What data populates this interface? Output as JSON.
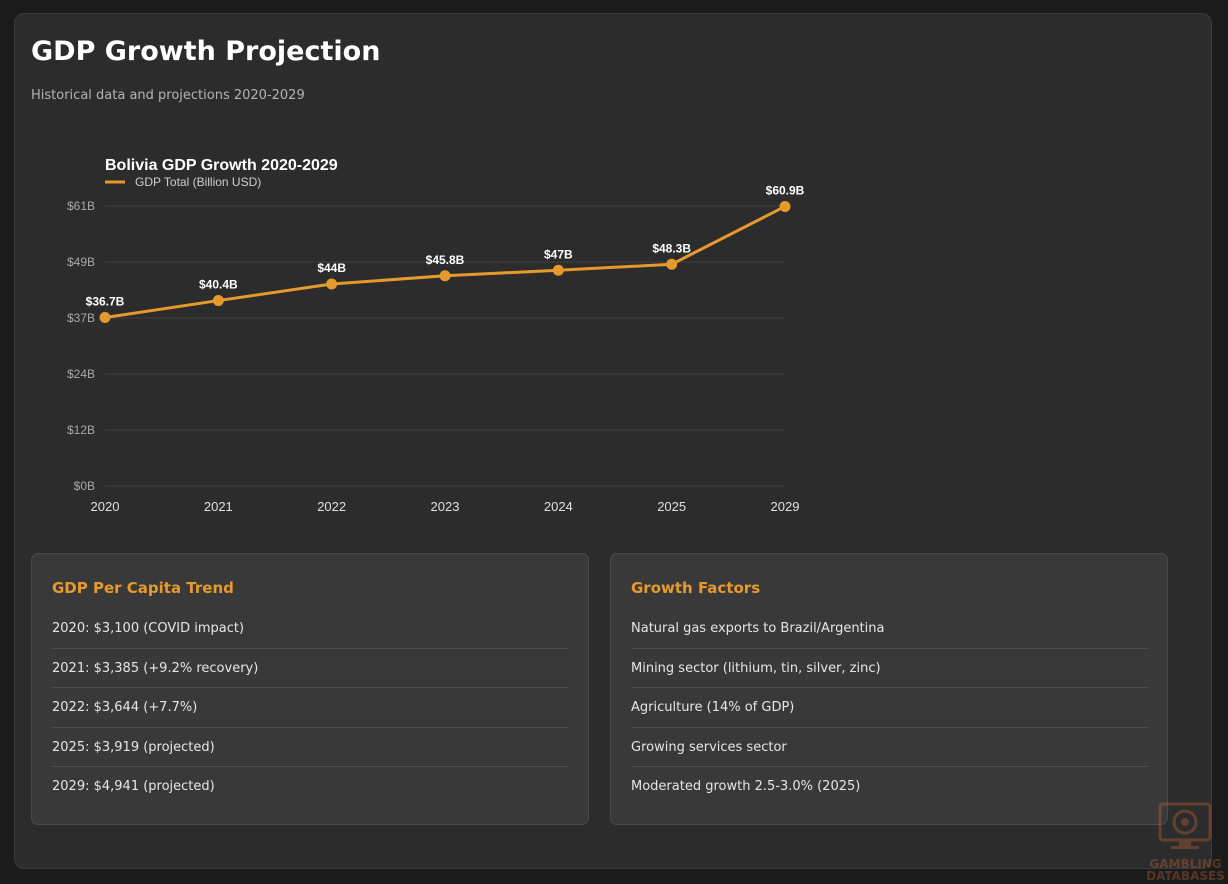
{
  "header": {
    "title": "GDP Growth Projection",
    "subtitle": "Historical data and projections 2020-2029"
  },
  "colors": {
    "accent": "#e59a2e",
    "background": "#2c2c2c",
    "panel": "#393939"
  },
  "chart_data": {
    "type": "line",
    "title": "Bolivia GDP Growth 2020-2029",
    "categories": [
      "2020",
      "2021",
      "2022",
      "2023",
      "2024",
      "2025",
      "2029"
    ],
    "series": [
      {
        "name": "GDP Total (Billion USD)",
        "values": [
          36.7,
          40.4,
          44,
          45.8,
          47,
          48.3,
          60.9
        ],
        "labels": [
          "$36.7B",
          "$40.4B",
          "$44B",
          "$45.8B",
          "$47B",
          "$48.3B",
          "$60.9B"
        ],
        "color": "#e59a2e"
      }
    ],
    "yticks": [
      {
        "value": 0,
        "label": "$0B"
      },
      {
        "value": 12.2,
        "label": "$12B"
      },
      {
        "value": 24.4,
        "label": "$24B"
      },
      {
        "value": 36.6,
        "label": "$37B"
      },
      {
        "value": 48.8,
        "label": "$49B"
      },
      {
        "value": 61,
        "label": "$61B"
      }
    ],
    "ylim": [
      0,
      61
    ],
    "xlabel": "",
    "ylabel": "",
    "grid": true,
    "legend": "top-left"
  },
  "panels": {
    "per_capita": {
      "title": "GDP Per Capita Trend",
      "items": [
        "2020: $3,100 (COVID impact)",
        "2021: $3,385 (+9.2% recovery)",
        "2022: $3,644 (+7.7%)",
        "2025: $3,919 (projected)",
        "2029: $4,941 (projected)"
      ]
    },
    "growth_factors": {
      "title": "Growth Factors",
      "items": [
        "Natural gas exports to Brazil/Argentina",
        "Mining sector (lithium, tin, silver, zinc)",
        "Agriculture (14% of GDP)",
        "Growing services sector",
        "Moderated growth 2.5-3.0% (2025)"
      ]
    }
  },
  "watermark": {
    "line1": "GAMBLING",
    "line2": "DATABASES",
    "icon": "monitor-casino-chip-icon"
  }
}
